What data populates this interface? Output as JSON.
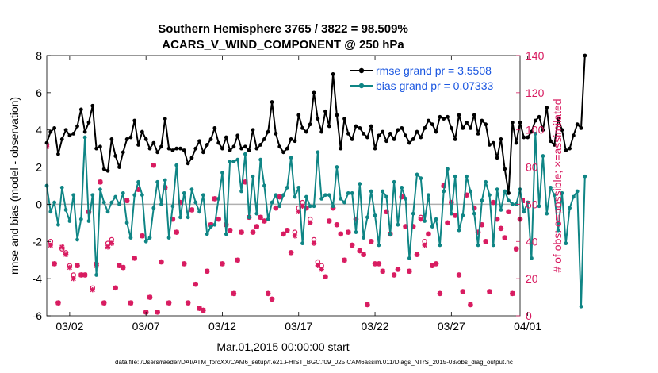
{
  "colors": {
    "rmse": "#000000",
    "bias": "#0f8585",
    "obs": "#d81b60",
    "zero_line": "#b0b0b0",
    "legend_text": "#1a56e0"
  },
  "chart_data": {
    "type": "line",
    "title_line1": "Southern Hemisphere 3765 / 3822 = 98.509%",
    "title_line2": "ACARS_V_WIND_COMPONENT @ 250 hPa",
    "xlabel": "Mar.01,2015 00:00:00 start",
    "ylabel_left": "rmse and bias (model - observation)",
    "ylabel_right": "# of obs: o=possible; ×=assimilated",
    "xlim": [
      0.5,
      31.5
    ],
    "ylim_left": [
      -6,
      8
    ],
    "ylim_right": [
      0,
      140
    ],
    "x_ticks": [
      2,
      7,
      12,
      17,
      22,
      27,
      32
    ],
    "x_tick_labels": [
      "03/02",
      "03/07",
      "03/12",
      "03/17",
      "03/22",
      "03/27",
      "04/01"
    ],
    "y_ticks_left": [
      -6,
      -4,
      -2,
      0,
      2,
      4,
      6,
      8
    ],
    "y_ticks_right": [
      0,
      20,
      40,
      60,
      80,
      100,
      120,
      140
    ],
    "grid": false,
    "legend_location": "top-right",
    "legend": [
      {
        "label": "rmse grand pr = 3.5508",
        "series": "rmse"
      },
      {
        "label": "bias grand pr = 0.07333",
        "series": "bias"
      }
    ],
    "x_start": 0.5,
    "x_step": 0.25,
    "series": [
      {
        "name": "rmse",
        "axis": "left",
        "values": [
          3.3,
          3.9,
          4.1,
          2.7,
          3.5,
          4.0,
          3.7,
          3.8,
          4.2,
          5.1,
          3.9,
          4.4,
          5.3,
          3.0,
          3.1,
          1.9,
          1.8,
          3.5,
          2.6,
          2.0,
          2.8,
          3.5,
          3.6,
          4.5,
          3.2,
          3.9,
          3.5,
          3.0,
          3.3,
          2.8,
          3.1,
          4.6,
          3.0,
          2.9,
          3.0,
          3.0,
          2.9,
          2.2,
          2.5,
          3.0,
          3.4,
          2.8,
          3.2,
          3.5,
          4.1,
          3.3,
          3.0,
          3.6,
          2.9,
          3.1,
          3.7,
          3.0,
          3.1,
          2.9,
          4.0,
          3.0,
          3.2,
          3.5,
          3.9,
          5.5,
          3.8,
          3.1,
          2.8,
          3.0,
          3.5,
          3.4,
          4.8,
          4.1,
          3.9,
          4.3,
          6.0,
          4.6,
          3.9,
          5.0,
          4.2,
          7.0,
          4.8,
          3.0,
          4.6,
          3.8,
          3.5,
          4.2,
          4.1,
          3.8,
          3.6,
          4.2,
          3.0,
          3.7,
          3.9,
          3.4,
          3.8,
          3.5,
          4.0,
          4.1,
          3.7,
          3.3,
          3.5,
          3.9,
          3.6,
          4.1,
          4.5,
          4.3,
          3.9,
          4.7,
          4.6,
          4.7,
          4.1,
          3.5,
          4.8,
          4.1,
          4.4,
          4.1,
          4.8,
          3.8,
          4.5,
          4.3,
          3.2,
          3.3,
          2.5,
          3.5,
          1.9,
          0.6,
          4.4,
          3.3,
          4.4,
          3.6,
          3.6,
          3.9,
          4.5,
          4.7,
          4.0,
          5.2,
          3.4,
          3.2,
          4.6,
          4.0,
          2.9,
          3.0,
          3.7,
          4.3,
          4.1,
          8.0
        ]
      },
      {
        "name": "bias",
        "axis": "left",
        "values": [
          1.0,
          -0.4,
          0.1,
          -1.1,
          0.9,
          -0.3,
          -0.9,
          0.5,
          -1.9,
          -0.8,
          3.6,
          -0.9,
          0.5,
          -3.8,
          0.8,
          0.1,
          -0.4,
          0.1,
          0.4,
          0.0,
          0.6,
          -1.0,
          -1.8,
          0.5,
          1.2,
          0.5,
          -2.0,
          -1.8,
          -0.2,
          1.2,
          0.0,
          1.3,
          -1.8,
          -0.1,
          2.1,
          -0.7,
          0.6,
          -0.7,
          0.8,
          0.1,
          -0.4,
          0.5,
          -1.6,
          -1.2,
          -1.1,
          0.3,
          1.7,
          -1.6,
          2.3,
          2.3,
          2.4,
          0.7,
          2.7,
          -0.7,
          1.5,
          -0.5,
          2.4,
          1.0,
          -0.8,
          0.1,
          0.5,
          -0.1,
          0.5,
          0.9,
          2.5,
          0.4,
          0.9,
          -2.1,
          0.4,
          -0.1,
          -0.1,
          2.8,
          0.3,
          0.5,
          0.5,
          -0.1,
          2.0,
          0.3,
          0.1,
          0.6,
          0.6,
          -1.5,
          1.1,
          -1.8,
          -0.7,
          0.7,
          -0.6,
          -2.2,
          0.7,
          0.4,
          -1.6,
          1.2,
          -1.1,
          0.9,
          0.3,
          -2.9,
          -0.5,
          1.6,
          1.4,
          -0.9,
          0.5,
          -1.2,
          -0.8,
          -2.2,
          0.7,
          1.9,
          -0.5,
          1.5,
          -1.4,
          -0.6,
          1.5,
          0.7,
          -0.5,
          -2.2,
          0.2,
          1.2,
          0.5,
          -2.2,
          0.8,
          -0.3,
          0.7,
          0.2,
          0.0,
          0.0,
          0.8,
          -0.4,
          0.1,
          -2.9,
          3.8,
          -0.1,
          2.6,
          -0.5,
          0.9,
          0.5,
          -1.4,
          0.6,
          -2.1,
          -0.2,
          0.4,
          0.7,
          -5.5,
          1.5
        ]
      },
      {
        "name": "obs_possible",
        "axis": "right",
        "values": [
          92,
          40,
          28,
          7,
          36,
          34,
          27,
          22,
          27,
          22,
          22,
          56,
          15,
          28,
          72,
          7,
          39,
          41,
          15,
          27,
          26,
          62,
          7,
          31,
          68,
          43,
          2,
          10,
          81,
          2,
          29,
          69,
          7,
          52,
          45,
          61,
          28,
          7,
          57,
          17,
          4,
          3,
          24,
          49,
          63,
          52,
          28,
          49,
          46,
          12,
          30,
          45,
          72,
          53,
          45,
          48,
          53,
          51,
          12,
          9,
          58,
          64,
          44,
          46,
          34,
          45,
          58,
          61,
          58,
          52,
          41,
          29,
          27,
          21,
          51,
          58,
          49,
          44,
          30,
          45,
          38,
          52,
          35,
          33,
          6,
          40,
          28,
          28,
          24,
          56,
          44,
          22,
          25,
          64,
          48,
          24,
          48,
          33,
          53,
          40,
          44,
          27,
          28,
          12,
          70,
          50,
          61,
          54,
          22,
          13,
          65,
          6,
          58,
          45,
          49,
          40,
          13,
          61,
          52,
          47,
          42,
          56,
          12,
          36,
          52,
          62,
          32,
          28,
          49,
          8,
          59,
          31,
          4,
          61,
          33,
          35,
          35,
          47,
          56,
          52,
          30,
          10,
          4,
          1
        ]
      },
      {
        "name": "obs_assimilated",
        "axis": "right",
        "values": [
          91,
          38,
          28,
          7,
          37,
          33,
          26,
          20,
          27,
          22,
          22,
          56,
          14,
          27,
          72,
          7,
          37,
          39,
          15,
          27,
          26,
          62,
          7,
          31,
          68,
          43,
          2,
          10,
          81,
          2,
          29,
          69,
          7,
          52,
          45,
          61,
          28,
          7,
          57,
          17,
          4,
          3,
          24,
          49,
          63,
          52,
          28,
          49,
          46,
          12,
          30,
          45,
          72,
          53,
          45,
          48,
          53,
          51,
          12,
          9,
          58,
          64,
          44,
          46,
          34,
          43,
          56,
          59,
          58,
          50,
          39,
          27,
          25,
          21,
          51,
          58,
          49,
          44,
          30,
          45,
          38,
          52,
          35,
          33,
          6,
          40,
          28,
          28,
          24,
          56,
          44,
          22,
          25,
          64,
          48,
          24,
          48,
          33,
          52,
          38,
          44,
          27,
          28,
          12,
          70,
          50,
          61,
          54,
          22,
          13,
          65,
          6,
          58,
          45,
          49,
          40,
          13,
          61,
          52,
          47,
          42,
          56,
          12,
          36,
          52,
          62,
          32,
          28,
          49,
          8,
          59,
          31,
          4,
          61,
          33,
          35,
          35,
          47,
          56,
          52,
          30,
          10,
          4,
          1
        ]
      }
    ]
  },
  "footer": "data file: /Users/raeder/DAI/ATM_forcXX/CAM6_setup/f.e21.FHIST_BGC.f09_025.CAM6assim.011/Diags_NTrS_2015-03/obs_diag_output.nc"
}
